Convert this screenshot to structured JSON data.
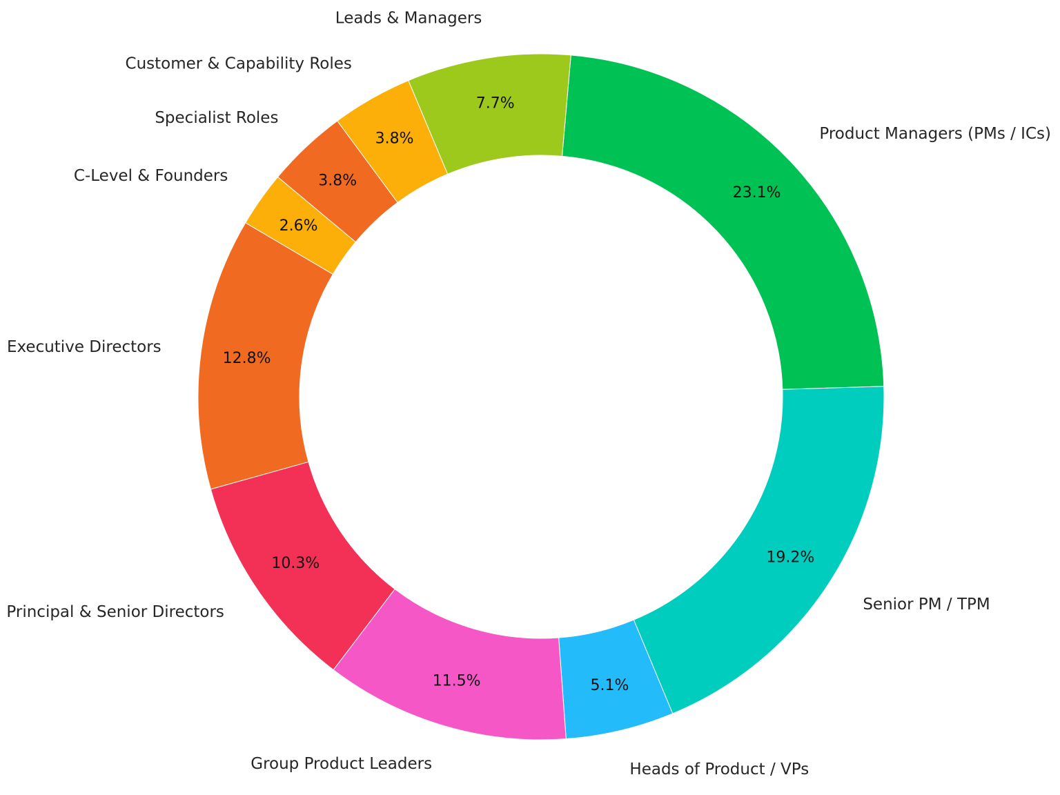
{
  "chart_data": {
    "type": "pie",
    "style": "donut",
    "start_angle_deg": 85,
    "direction": "clockwise",
    "slices": [
      {
        "label": "Product Managers (PMs / ICs)",
        "value": 23.1,
        "value_label": "23.1%",
        "color": "#00C153"
      },
      {
        "label": "Senior PM / TPM",
        "value": 19.2,
        "value_label": "19.2%",
        "color": "#00CDBE"
      },
      {
        "label": "Heads of Product / VPs",
        "value": 5.1,
        "value_label": "5.1%",
        "color": "#24BBFB"
      },
      {
        "label": "Group Product Leaders",
        "value": 11.5,
        "value_label": "11.5%",
        "color": "#F558C6"
      },
      {
        "label": "Principal & Senior Directors",
        "value": 10.3,
        "value_label": "10.3%",
        "color": "#F33055"
      },
      {
        "label": "Executive Directors",
        "value": 12.8,
        "value_label": "12.8%",
        "color": "#F06A22"
      },
      {
        "label": "C-Level & Founders",
        "value": 2.6,
        "value_label": "2.6%",
        "color": "#FCAF08"
      },
      {
        "label": "Specialist Roles",
        "value": 3.8,
        "value_label": "3.8%",
        "color": "#F06A22"
      },
      {
        "label": "Customer & Capability Roles",
        "value": 3.8,
        "value_label": "3.8%",
        "color": "#FCAF08"
      },
      {
        "label": "Leads & Managers",
        "value": 7.7,
        "value_label": "7.7%",
        "color": "#9DC91C"
      }
    ]
  }
}
